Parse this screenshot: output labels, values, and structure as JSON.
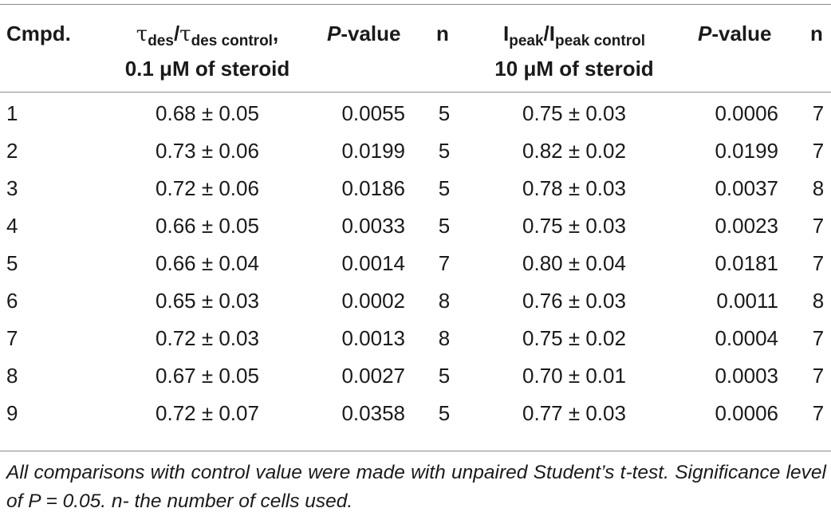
{
  "table": {
    "headers": {
      "cmpd": "Cmpd.",
      "tau_main": "τ",
      "tau_sub1": "des",
      "tau_slash": "/",
      "tau_main2": "τ",
      "tau_sub2": "des control",
      "tau_comma": ",",
      "tau_line2": "0.1 μM of steroid",
      "p_value_italic": "P",
      "p_value_rest": "-value",
      "n": "n",
      "ipeak_main": "I",
      "ipeak_sub1": "peak",
      "ipeak_slash": "/I",
      "ipeak_sub2": "peak control",
      "ipeak_line2": "10 μM of steroid",
      "p_value2_italic": "P",
      "p_value2_rest": "-value",
      "n2": "n"
    },
    "rows": [
      {
        "cmpd": "1",
        "tau": "0.68 ± 0.05",
        "p1": "0.0055",
        "n1": "5",
        "ipeak": "0.75 ± 0.03",
        "p2": "0.0006",
        "n2": "7"
      },
      {
        "cmpd": "2",
        "tau": "0.73 ± 0.06",
        "p1": "0.0199",
        "n1": "5",
        "ipeak": "0.82 ± 0.02",
        "p2": "0.0199",
        "n2": "7"
      },
      {
        "cmpd": "3",
        "tau": "0.72 ± 0.06",
        "p1": "0.0186",
        "n1": "5",
        "ipeak": "0.78 ± 0.03",
        "p2": "0.0037",
        "n2": "8"
      },
      {
        "cmpd": "4",
        "tau": "0.66 ± 0.05",
        "p1": "0.0033",
        "n1": "5",
        "ipeak": "0.75 ± 0.03",
        "p2": "0.0023",
        "n2": "7"
      },
      {
        "cmpd": "5",
        "tau": "0.66 ± 0.04",
        "p1": "0.0014",
        "n1": "7",
        "ipeak": "0.80 ± 0.04",
        "p2": "0.0181",
        "n2": "7"
      },
      {
        "cmpd": "6",
        "tau": "0.65 ± 0.03",
        "p1": "0.0002",
        "n1": "8",
        "ipeak": "0.76 ± 0.03",
        "p2": "0.0011",
        "n2": "8"
      },
      {
        "cmpd": "7",
        "tau": "0.72 ± 0.03",
        "p1": "0.0013",
        "n1": "8",
        "ipeak": "0.75 ± 0.02",
        "p2": "0.0004",
        "n2": "7"
      },
      {
        "cmpd": "8",
        "tau": "0.67 ± 0.05",
        "p1": "0.0027",
        "n1": "5",
        "ipeak": "0.70 ± 0.01",
        "p2": "0.0003",
        "n2": "7"
      },
      {
        "cmpd": "9",
        "tau": "0.72 ± 0.07",
        "p1": "0.0358",
        "n1": "5",
        "ipeak": "0.77 ± 0.03",
        "p2": "0.0006",
        "n2": "7"
      }
    ],
    "footnote": "All comparisons with control value were made with unpaired Student’s t-test. Significance level of P = 0.05. n- the number of cells used."
  }
}
